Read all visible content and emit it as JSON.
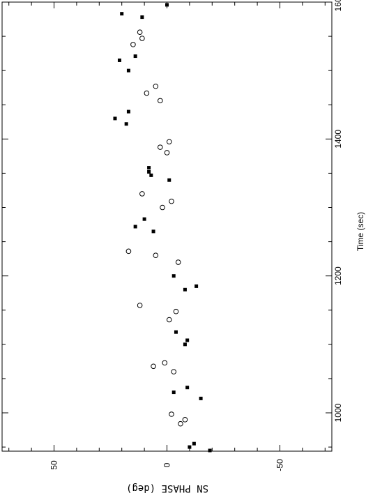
{
  "chart_data": {
    "type": "scatter",
    "title": "",
    "xlabel": "Time (sec)",
    "ylabel": "SN PHASE (deg)",
    "xlim": [
      944,
      1600
    ],
    "ylim": [
      -73,
      73
    ],
    "x_ticks": [
      1000,
      1200,
      1400,
      1600
    ],
    "y_ticks": [
      50,
      0,
      -50
    ],
    "x_tick_labels": [
      "1000",
      "1200",
      "1400",
      "1600"
    ],
    "y_tick_labels": [
      "50",
      "0",
      "-50"
    ],
    "grid": false,
    "legend": "none",
    "orientation": "rotated: time runs along the vertical axis, phase along the horizontal axis, labels rotated 90 degrees",
    "series": [
      {
        "marker": "filled-square",
        "points": [
          {
            "x": 945,
            "y": -19
          },
          {
            "x": 950,
            "y": -10
          },
          {
            "x": 955,
            "y": -12
          },
          {
            "x": 1021,
            "y": -15
          },
          {
            "x": 1030,
            "y": -3
          },
          {
            "x": 1037,
            "y": -9
          },
          {
            "x": 1100,
            "y": -8
          },
          {
            "x": 1106,
            "y": -9
          },
          {
            "x": 1118,
            "y": -4
          },
          {
            "x": 1180,
            "y": -8
          },
          {
            "x": 1185,
            "y": -13
          },
          {
            "x": 1200,
            "y": -3
          },
          {
            "x": 1265,
            "y": 6
          },
          {
            "x": 1272,
            "y": 14
          },
          {
            "x": 1283,
            "y": 10
          },
          {
            "x": 1347,
            "y": 7
          },
          {
            "x": 1352,
            "y": 8
          },
          {
            "x": 1358,
            "y": 8
          },
          {
            "x": 1340,
            "y": -1
          },
          {
            "x": 1422,
            "y": 18
          },
          {
            "x": 1430,
            "y": 23
          },
          {
            "x": 1440,
            "y": 17
          },
          {
            "x": 1500,
            "y": 17
          },
          {
            "x": 1515,
            "y": 21
          },
          {
            "x": 1521,
            "y": 14
          },
          {
            "x": 1578,
            "y": 11
          },
          {
            "x": 1583,
            "y": 20
          },
          {
            "x": 1596,
            "y": 0
          }
        ]
      },
      {
        "marker": "open-circle",
        "points": [
          {
            "x": 984,
            "y": -6
          },
          {
            "x": 990,
            "y": -8
          },
          {
            "x": 998,
            "y": -2
          },
          {
            "x": 1060,
            "y": -3
          },
          {
            "x": 1068,
            "y": 6
          },
          {
            "x": 1073,
            "y": 1
          },
          {
            "x": 1136,
            "y": -1
          },
          {
            "x": 1148,
            "y": -4
          },
          {
            "x": 1157,
            "y": 12
          },
          {
            "x": 1220,
            "y": -5
          },
          {
            "x": 1230,
            "y": 5
          },
          {
            "x": 1236,
            "y": 17
          },
          {
            "x": 1300,
            "y": 2
          },
          {
            "x": 1309,
            "y": -2
          },
          {
            "x": 1320,
            "y": 11
          },
          {
            "x": 1380,
            "y": 0
          },
          {
            "x": 1388,
            "y": 3
          },
          {
            "x": 1396,
            "y": -1
          },
          {
            "x": 1456,
            "y": 3
          },
          {
            "x": 1467,
            "y": 9
          },
          {
            "x": 1477,
            "y": 5
          },
          {
            "x": 1538,
            "y": 15
          },
          {
            "x": 1547,
            "y": 11
          },
          {
            "x": 1556,
            "y": 12
          }
        ]
      }
    ]
  }
}
